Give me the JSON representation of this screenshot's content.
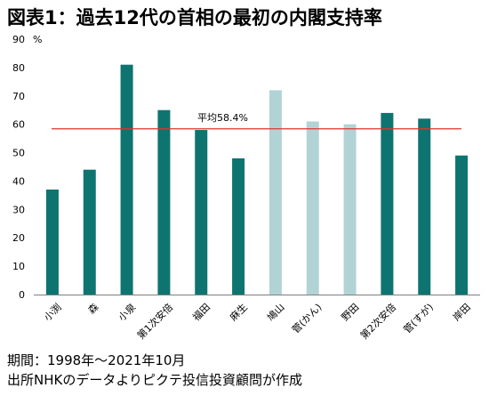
{
  "chart_data": {
    "type": "bar",
    "title": "図表1：過去12代の首相の最初の内閣支持率",
    "ylabel_unit": "%",
    "ylim": [
      0,
      90
    ],
    "yticks": [
      0,
      10,
      20,
      30,
      40,
      50,
      60,
      70,
      80,
      90
    ],
    "categories": [
      "小渕",
      "森",
      "小泉",
      "第1次安倍",
      "福田",
      "麻生",
      "鳩山",
      "菅(かん)",
      "野田",
      "第2次安倍",
      "菅(すが)",
      "岸田"
    ],
    "values": [
      37,
      44,
      81,
      65,
      58,
      48,
      72,
      61,
      60,
      64,
      62,
      49
    ],
    "highlight": [
      false,
      false,
      false,
      false,
      false,
      false,
      true,
      true,
      true,
      false,
      false,
      false
    ],
    "average": 58.4,
    "average_label": "平均58.4%",
    "colors": {
      "bar": "#0e7470",
      "bar_highlight": "#b2d3d6",
      "average_line": "#e0342a",
      "axis": "#7f7f7f"
    },
    "grid": false
  },
  "notes": {
    "period": "期間：1998年～2021年10月",
    "source": "出所NHKのデータよりピクテ投信投資顧問が作成"
  }
}
